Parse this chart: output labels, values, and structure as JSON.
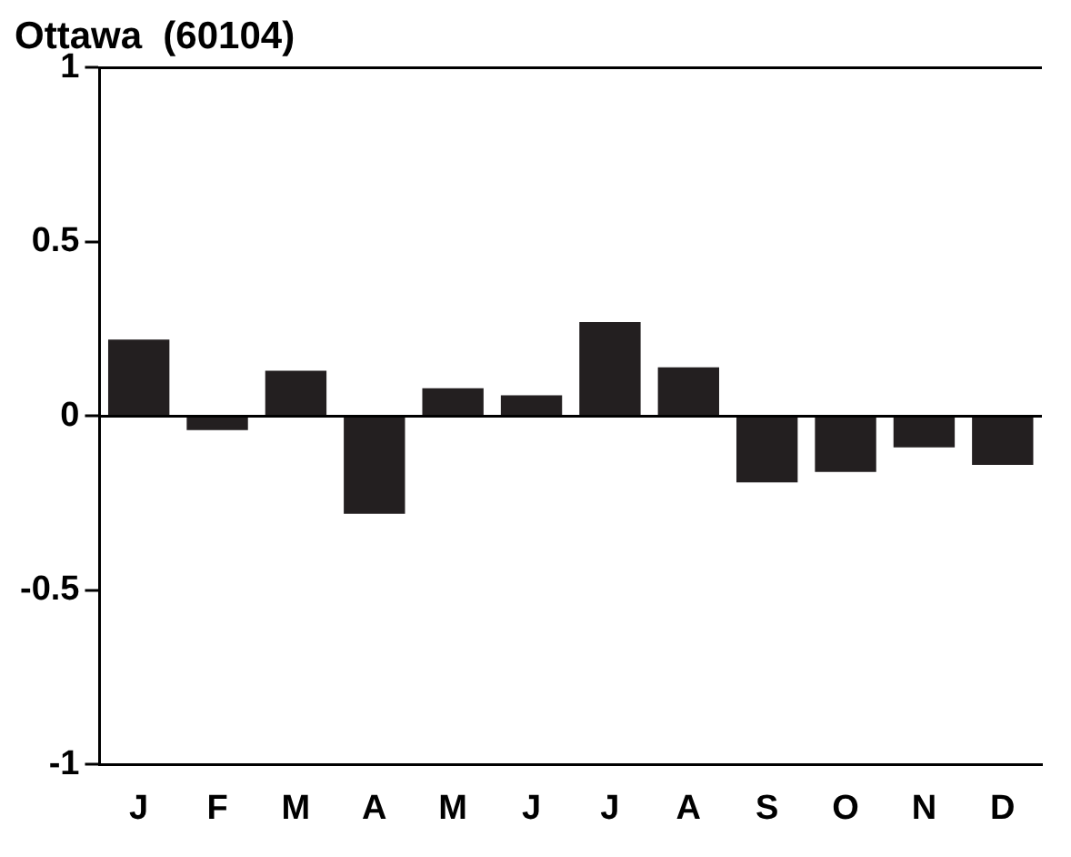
{
  "chart_data": {
    "type": "bar",
    "title": "Ottawa  (60104)",
    "categories": [
      "J",
      "F",
      "M",
      "A",
      "M",
      "J",
      "J",
      "A",
      "S",
      "O",
      "N",
      "D"
    ],
    "values": [
      0.22,
      -0.04,
      0.13,
      -0.28,
      0.08,
      0.06,
      0.27,
      0.14,
      -0.19,
      -0.16,
      -0.09,
      -0.14
    ],
    "color": "#231f20",
    "ylim": [
      -1,
      1
    ],
    "yticks": [
      -1,
      -0.5,
      0,
      0.5,
      1
    ],
    "ref_lines": [
      {
        "axis": "y",
        "value": 0,
        "color": "#000000"
      }
    ],
    "grid": false,
    "legend": false
  }
}
